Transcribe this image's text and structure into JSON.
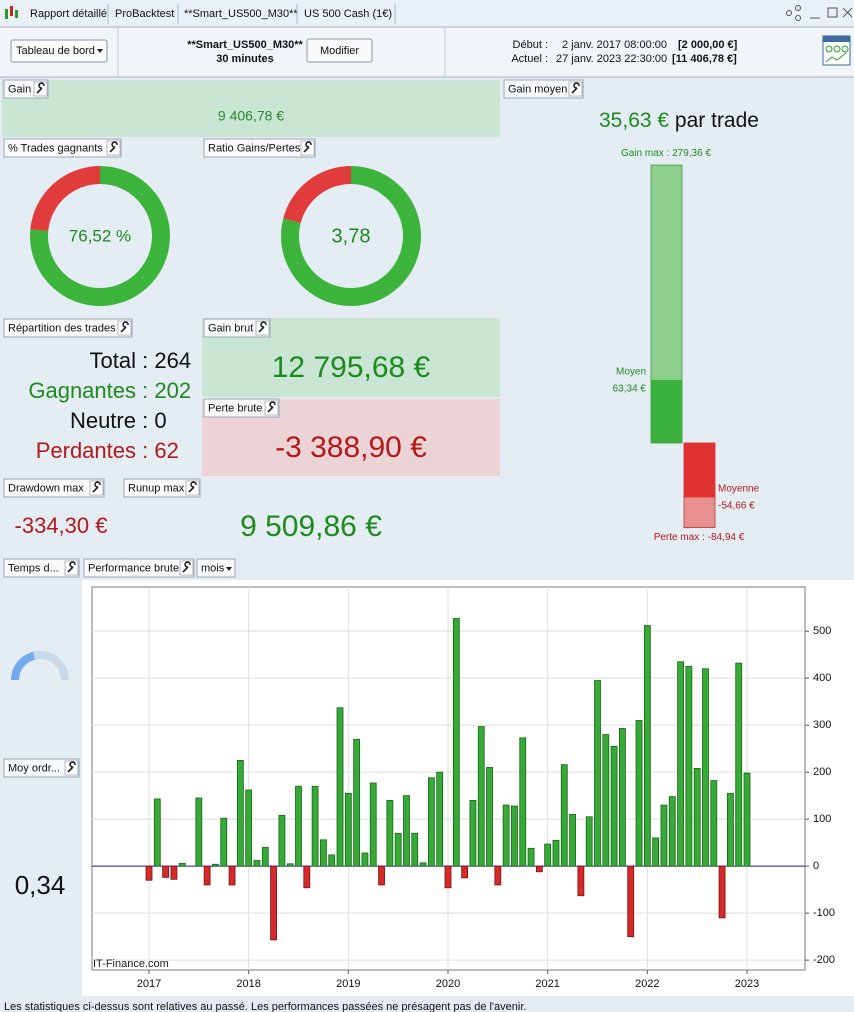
{
  "tabs": [
    "Rapport détaillé",
    "ProBacktest",
    "**Smart_US500_M30**",
    "US 500 Cash (1€)"
  ],
  "toolbar": {
    "dashboard": "Tableau de bord",
    "system": "**Smart_US500_M30**",
    "timeframe": "30 minutes",
    "edit": "Modifier",
    "start_label": "Début :",
    "start_date": "2 janv. 2017 08:00:00",
    "start_capital": "[2 000,00 €]",
    "current_label": "Actuel :",
    "current_date": "27 janv. 2023 22:30:00",
    "current_capital": "[11 406,78 €]"
  },
  "gain": {
    "title": "Gain",
    "value": "9 406,78 €"
  },
  "win_rate": {
    "title": "% Trades gagnants",
    "value": "76,52 %"
  },
  "ratio": {
    "title": "Ratio Gains/Pertes",
    "value": "3,78"
  },
  "trades": {
    "title": "Répartition des trades",
    "rows": [
      {
        "label": "Total",
        "value": 264
      },
      {
        "label": "Gagnantes",
        "value": 202
      },
      {
        "label": "Neutre",
        "value": 0
      },
      {
        "label": "Perdantes",
        "value": 62
      }
    ]
  },
  "gross_gain": {
    "title": "Gain brut",
    "value": 12795.68,
    "value_label": "12 795,68 €"
  },
  "gross_loss": {
    "title": "Perte brute",
    "value": -3388.9,
    "value_label": "-3 388,90 €"
  },
  "drawdown": {
    "title": "Drawdown max",
    "value": "-334,30 €"
  },
  "runup": {
    "title": "Runup max",
    "value": "9 509,86 €"
  },
  "avg_gain": {
    "title": "Gain moyen",
    "value": "35,63 €",
    "unit": "par trade",
    "max_gain": {
      "label": "Gain max :",
      "value": 279.36,
      "value_label": "279,36 €"
    },
    "avg_win": {
      "label": "Moyen",
      "value": 63.34,
      "value_label": "63,34 €"
    },
    "avg_loss": {
      "label": "Moyenne",
      "value": -54.66,
      "value_label": "-54,66 €"
    },
    "max_loss": {
      "label": "Perte max :",
      "value": -84.94,
      "value_label": "-84,94 €"
    }
  },
  "time_panel": {
    "title": "Temps d..."
  },
  "order_panel": {
    "title": "Moy ordr...",
    "value": "0,34"
  },
  "chart_data": {
    "type": "bar",
    "title": "Performance brute",
    "period": "mois",
    "categories": [
      null,
      null,
      null,
      null,
      null,
      null,
      null,
      null,
      null,
      null,
      null,
      null,
      null,
      null,
      null,
      null,
      null,
      null,
      null,
      null,
      null,
      null,
      null,
      null,
      null,
      null,
      null,
      null,
      null,
      null,
      null,
      null,
      null,
      null,
      null,
      null,
      null,
      null,
      null,
      null,
      null,
      null,
      null,
      null,
      null,
      null,
      null,
      null,
      null,
      null,
      null,
      null,
      null,
      null,
      null,
      null,
      null,
      null,
      null,
      null,
      null,
      null,
      null,
      null,
      null,
      null,
      null,
      null,
      null,
      null,
      null,
      null,
      null
    ],
    "values": [
      -30,
      143,
      -24,
      -28,
      6,
      0,
      145,
      -40,
      4,
      102,
      -40,
      225,
      162,
      12,
      40,
      -157,
      108,
      5,
      170,
      -46,
      170,
      56,
      24,
      337,
      155,
      270,
      28,
      177,
      -40,
      140,
      70,
      150,
      70,
      7,
      188,
      200,
      -46,
      527,
      -25,
      140,
      297,
      210,
      -40,
      130,
      128,
      273,
      38,
      -12,
      47,
      55,
      216,
      110,
      -63,
      105,
      395,
      280,
      255,
      293,
      -150,
      310,
      512,
      60,
      130,
      148,
      435,
      425,
      208,
      420,
      182,
      -110,
      155,
      432,
      198
    ],
    "colors": {
      "positive": "#36a936",
      "negative": "#d42a2a"
    },
    "ylim": [
      -221,
      594
    ],
    "yticks": [
      -200,
      -100,
      0,
      100,
      200,
      300,
      400,
      500
    ],
    "xticks": [
      {
        "value": 0,
        "label": "2017"
      },
      {
        "value": 12,
        "label": "2018"
      },
      {
        "value": 24,
        "label": "2019"
      },
      {
        "value": 36,
        "label": "2020"
      },
      {
        "value": 48,
        "label": "2021"
      },
      {
        "value": 60,
        "label": "2022"
      },
      {
        "value": 72,
        "label": "2023"
      }
    ],
    "grid": true,
    "watermark": "IT-Finance.com"
  },
  "footer": "Les statistiques ci-dessus sont relatives au passé. Les performances passées ne présagent pas de l'avenir."
}
